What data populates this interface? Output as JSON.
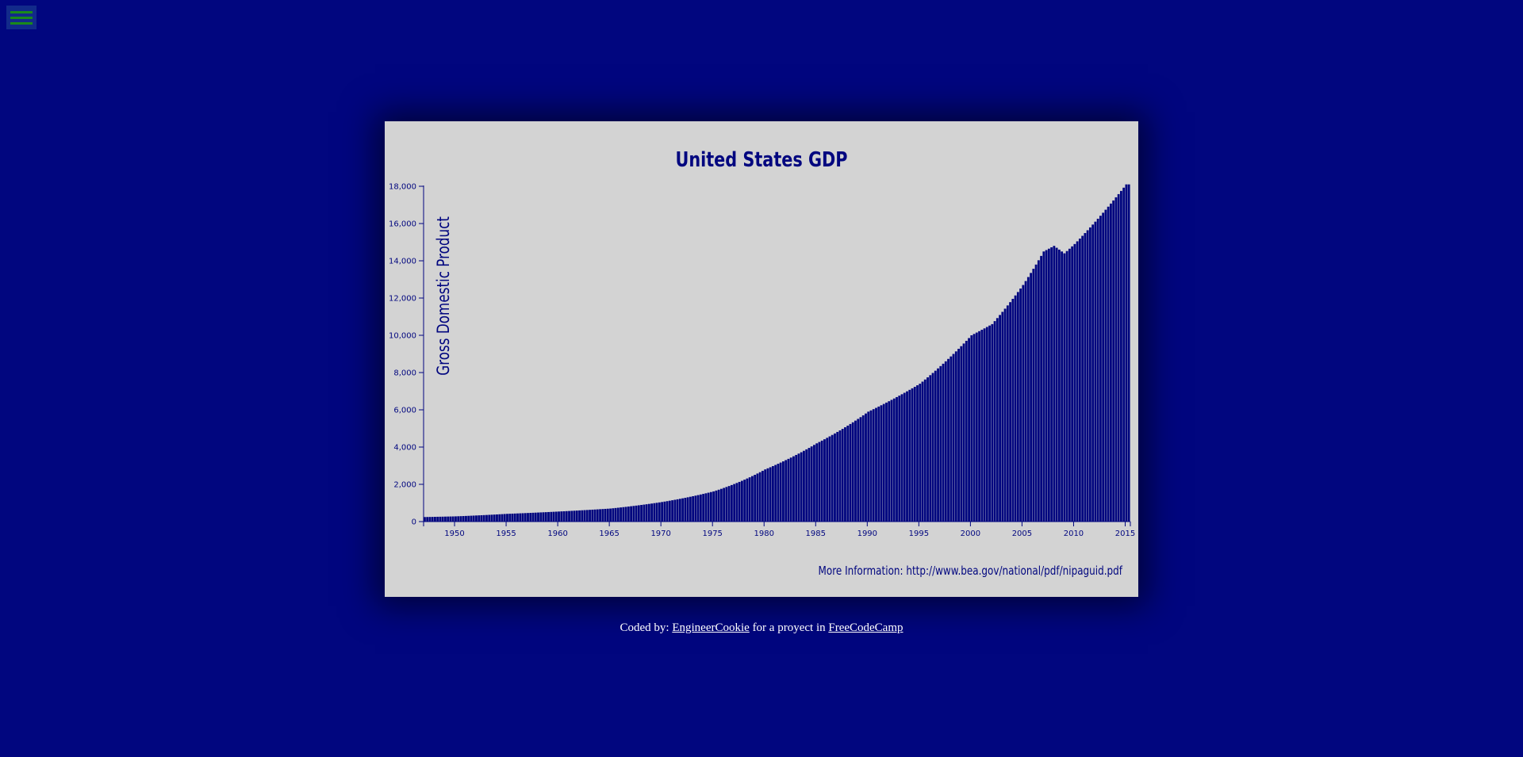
{
  "menu": {
    "icon": "hamburger-menu-icon"
  },
  "colors": {
    "page_bg": "#01067f",
    "card_bg": "#d3d3d3",
    "bar": "#01067f",
    "menu_btn": "#122a8a",
    "menu_lines": "#1a8a1a"
  },
  "chart_data": {
    "type": "bar",
    "title": "United States GDP",
    "ylabel": "Gross Domestic Product",
    "xlabel": "",
    "xlim": [
      1947,
      2015.5
    ],
    "ylim": [
      0,
      18000
    ],
    "grid": false,
    "y_ticks": [
      0,
      2000,
      4000,
      6000,
      8000,
      10000,
      12000,
      14000,
      16000,
      18000
    ],
    "y_tick_labels": [
      "0",
      "2,000",
      "4,000",
      "6,000",
      "8,000",
      "10,000",
      "12,000",
      "14,000",
      "16,000",
      "18,000"
    ],
    "x_ticks": [
      1950,
      1955,
      1960,
      1965,
      1970,
      1975,
      1980,
      1985,
      1990,
      1995,
      2000,
      2005,
      2010,
      2015
    ],
    "x_tick_labels": [
      "1950",
      "1955",
      "1960",
      "1965",
      "1970",
      "1975",
      "1980",
      "1985",
      "1990",
      "1995",
      "2000",
      "2005",
      "2010",
      "2015"
    ],
    "anchors": [
      [
        1947,
        243
      ],
      [
        1950,
        280
      ],
      [
        1955,
        415
      ],
      [
        1960,
        540
      ],
      [
        1965,
        700
      ],
      [
        1970,
        1050
      ],
      [
        1975,
        1620
      ],
      [
        1980,
        2800
      ],
      [
        1982,
        3300
      ],
      [
        1985,
        4200
      ],
      [
        1990,
        5900
      ],
      [
        1995,
        7400
      ],
      [
        2000,
        10000
      ],
      [
        2002,
        10600
      ],
      [
        2005,
        12700
      ],
      [
        2007,
        14500
      ],
      [
        2008,
        14800
      ],
      [
        2009,
        14400
      ],
      [
        2010,
        14900
      ],
      [
        2012,
        16100
      ],
      [
        2015,
        18100
      ]
    ],
    "annotation": "More Information: http://www.bea.gov/national/pdf/nipaguid.pdf"
  },
  "footer": {
    "prefix": "Coded by: ",
    "author": "EngineerCookie",
    "middle": " for a proyect in ",
    "site": "FreeCodeCamp"
  }
}
